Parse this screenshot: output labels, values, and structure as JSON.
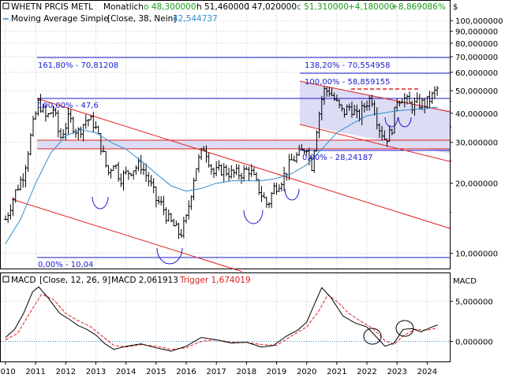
{
  "header": {
    "instrument": "WHETN PRCIS METL",
    "period": "Monatlich",
    "open_label": "o 48,300000",
    "high_label": "h 51,460000",
    "low_label": "l 47,020000",
    "close_label": "c 51,310000",
    "change_label": "+4,180000",
    "change_pct_label": "+8,869086%",
    "ma_label": "Moving Average Simple",
    "ma_params": "[Close, 38, Nein]",
    "ma_value": "42,544737",
    "currency_label": "$"
  },
  "macd_header": {
    "label": "MACD",
    "params": "[Close, 12, 26, 9]",
    "value_label": "MACD 2,061913",
    "trigger_label": "Trigger 1,674019",
    "axis_name": "MACD"
  },
  "colors": {
    "price_bar": "#000000",
    "moving_average": "#2f8fd0",
    "channel": "#e02020",
    "fib_line": "#1a1ad0",
    "zone_fill": "#dcdcf5",
    "macd_line": "#000000",
    "trigger_line": "#e02020",
    "zero_line": "#2f8fd0"
  },
  "fib_labels": {
    "left_1618": "161,80% - 70,81208",
    "left_100": "100,00% - 47,6",
    "left_0": "0,00% - 10,04",
    "right_1382": "138,20% - 70,554958",
    "right_100": "100,00% - 58,859155",
    "right_0": "0,00% - 28,24187"
  },
  "chart_data": {
    "type": "candlestick",
    "scale": "log",
    "x_tick_labels": [
      "2010",
      "2011",
      "2012",
      "2013",
      "2014",
      "2015",
      "2016",
      "2017",
      "2018",
      "2019",
      "2020",
      "2021",
      "2022",
      "2023",
      "2024"
    ],
    "y_tick_labels": [
      "10,000000",
      "20,000000",
      "30,000000",
      "40,000000",
      "50,000000",
      "60,000000",
      "70,000000",
      "80,000000",
      "90,000000",
      "100,000000"
    ],
    "y_ticks": [
      10,
      20,
      30,
      40,
      50,
      60,
      70,
      80,
      90,
      100
    ],
    "ylim": [
      8.6,
      110
    ],
    "xlim": [
      2010.0,
      2024.75
    ],
    "price_series": [
      {
        "t": 2010.0,
        "v": 14
      },
      {
        "t": 2010.3,
        "v": 18
      },
      {
        "t": 2010.6,
        "v": 22
      },
      {
        "t": 2010.9,
        "v": 35
      },
      {
        "t": 2011.1,
        "v": 45
      },
      {
        "t": 2011.35,
        "v": 38
      },
      {
        "t": 2011.6,
        "v": 42
      },
      {
        "t": 2011.8,
        "v": 31
      },
      {
        "t": 2012.1,
        "v": 38
      },
      {
        "t": 2012.4,
        "v": 33
      },
      {
        "t": 2012.7,
        "v": 38
      },
      {
        "t": 2012.95,
        "v": 36
      },
      {
        "t": 2013.2,
        "v": 28
      },
      {
        "t": 2013.4,
        "v": 22
      },
      {
        "t": 2013.6,
        "v": 25
      },
      {
        "t": 2013.8,
        "v": 21
      },
      {
        "t": 2014.0,
        "v": 22
      },
      {
        "t": 2014.2,
        "v": 23
      },
      {
        "t": 2014.5,
        "v": 24
      },
      {
        "t": 2014.8,
        "v": 20
      },
      {
        "t": 2015.0,
        "v": 17
      },
      {
        "t": 2015.2,
        "v": 16
      },
      {
        "t": 2015.4,
        "v": 14
      },
      {
        "t": 2015.6,
        "v": 13
      },
      {
        "t": 2015.8,
        "v": 12
      },
      {
        "t": 2016.0,
        "v": 14
      },
      {
        "t": 2016.3,
        "v": 23
      },
      {
        "t": 2016.6,
        "v": 29
      },
      {
        "t": 2016.9,
        "v": 22
      },
      {
        "t": 2017.2,
        "v": 23
      },
      {
        "t": 2017.5,
        "v": 22
      },
      {
        "t": 2017.8,
        "v": 22
      },
      {
        "t": 2018.1,
        "v": 23
      },
      {
        "t": 2018.4,
        "v": 19
      },
      {
        "t": 2018.7,
        "v": 16
      },
      {
        "t": 2018.9,
        "v": 19
      },
      {
        "t": 2019.2,
        "v": 21
      },
      {
        "t": 2019.5,
        "v": 25
      },
      {
        "t": 2019.8,
        "v": 27
      },
      {
        "t": 2020.0,
        "v": 29
      },
      {
        "t": 2020.15,
        "v": 23
      },
      {
        "t": 2020.35,
        "v": 36
      },
      {
        "t": 2020.55,
        "v": 50
      },
      {
        "t": 2020.75,
        "v": 50
      },
      {
        "t": 2021.0,
        "v": 44
      },
      {
        "t": 2021.2,
        "v": 40
      },
      {
        "t": 2021.45,
        "v": 43
      },
      {
        "t": 2021.7,
        "v": 38
      },
      {
        "t": 2021.95,
        "v": 44
      },
      {
        "t": 2022.15,
        "v": 47
      },
      {
        "t": 2022.4,
        "v": 35
      },
      {
        "t": 2022.6,
        "v": 31
      },
      {
        "t": 2022.8,
        "v": 33
      },
      {
        "t": 2023.0,
        "v": 46
      },
      {
        "t": 2023.2,
        "v": 47
      },
      {
        "t": 2023.45,
        "v": 43
      },
      {
        "t": 2023.7,
        "v": 44
      },
      {
        "t": 2023.95,
        "v": 44
      },
      {
        "t": 2024.15,
        "v": 47
      },
      {
        "t": 2024.35,
        "v": 51.3
      }
    ],
    "moving_average": [
      {
        "t": 2010.0,
        "v": 11
      },
      {
        "t": 2010.5,
        "v": 14
      },
      {
        "t": 2011.0,
        "v": 20
      },
      {
        "t": 2011.5,
        "v": 27
      },
      {
        "t": 2012.0,
        "v": 32
      },
      {
        "t": 2012.5,
        "v": 34
      },
      {
        "t": 2013.0,
        "v": 33
      },
      {
        "t": 2013.5,
        "v": 30
      },
      {
        "t": 2014.0,
        "v": 28
      },
      {
        "t": 2014.5,
        "v": 25
      },
      {
        "t": 2015.0,
        "v": 22
      },
      {
        "t": 2015.5,
        "v": 19.5
      },
      {
        "t": 2016.0,
        "v": 18.5
      },
      {
        "t": 2016.5,
        "v": 19
      },
      {
        "t": 2017.0,
        "v": 20
      },
      {
        "t": 2017.5,
        "v": 20.5
      },
      {
        "t": 2018.0,
        "v": 20.5
      },
      {
        "t": 2018.5,
        "v": 20.5
      },
      {
        "t": 2019.0,
        "v": 21
      },
      {
        "t": 2019.5,
        "v": 22
      },
      {
        "t": 2020.0,
        "v": 24
      },
      {
        "t": 2020.5,
        "v": 28
      },
      {
        "t": 2021.0,
        "v": 33
      },
      {
        "t": 2021.5,
        "v": 36
      },
      {
        "t": 2022.0,
        "v": 39
      },
      {
        "t": 2022.5,
        "v": 40
      },
      {
        "t": 2023.0,
        "v": 41
      },
      {
        "t": 2023.5,
        "v": 41.5
      },
      {
        "t": 2024.0,
        "v": 42
      },
      {
        "t": 2024.35,
        "v": 42.5
      }
    ],
    "fib_levels_left": [
      {
        "label": "161,80%",
        "value": 70.81208
      },
      {
        "label": "100,00%",
        "value": 47.6
      },
      {
        "label": "0,00%",
        "value": 10.04
      }
    ],
    "fib_levels_right": [
      {
        "label": "138,20%",
        "value": 70.554958
      },
      {
        "label": "100,00%",
        "value": 58.859155
      },
      {
        "label": "0,00%",
        "value": 28.24187
      }
    ],
    "macd": {
      "ylim": [
        -2.5,
        8.5
      ],
      "y_ticks": [
        5,
        0
      ],
      "y_tick_labels": [
        "5,000000",
        "0,000000"
      ],
      "macd_series": [
        {
          "t": 2010.0,
          "v": 0.5
        },
        {
          "t": 2010.3,
          "v": 1.5
        },
        {
          "t": 2010.6,
          "v": 3.5
        },
        {
          "t": 2010.9,
          "v": 6.2
        },
        {
          "t": 2011.1,
          "v": 6.8
        },
        {
          "t": 2011.4,
          "v": 5.5
        },
        {
          "t": 2011.8,
          "v": 3.5
        },
        {
          "t": 2012.1,
          "v": 2.8
        },
        {
          "t": 2012.4,
          "v": 2.0
        },
        {
          "t": 2012.7,
          "v": 1.5
        },
        {
          "t": 2013.0,
          "v": 0.8
        },
        {
          "t": 2013.3,
          "v": -0.3
        },
        {
          "t": 2013.6,
          "v": -1.0
        },
        {
          "t": 2014.0,
          "v": -0.6
        },
        {
          "t": 2014.5,
          "v": -0.3
        },
        {
          "t": 2015.0,
          "v": -0.8
        },
        {
          "t": 2015.5,
          "v": -1.2
        },
        {
          "t": 2016.0,
          "v": -0.6
        },
        {
          "t": 2016.5,
          "v": 0.5
        },
        {
          "t": 2017.0,
          "v": 0.2
        },
        {
          "t": 2017.5,
          "v": -0.2
        },
        {
          "t": 2018.0,
          "v": -0.1
        },
        {
          "t": 2018.5,
          "v": -0.7
        },
        {
          "t": 2018.9,
          "v": -0.5
        },
        {
          "t": 2019.3,
          "v": 0.6
        },
        {
          "t": 2019.7,
          "v": 1.4
        },
        {
          "t": 2020.0,
          "v": 2.4
        },
        {
          "t": 2020.3,
          "v": 5.0
        },
        {
          "t": 2020.5,
          "v": 6.7
        },
        {
          "t": 2020.8,
          "v": 5.5
        },
        {
          "t": 2021.2,
          "v": 3.2
        },
        {
          "t": 2021.6,
          "v": 2.3
        },
        {
          "t": 2022.0,
          "v": 1.8
        },
        {
          "t": 2022.3,
          "v": 0.6
        },
        {
          "t": 2022.6,
          "v": -0.6
        },
        {
          "t": 2022.9,
          "v": -0.2
        },
        {
          "t": 2023.2,
          "v": 1.5
        },
        {
          "t": 2023.5,
          "v": 1.6
        },
        {
          "t": 2023.8,
          "v": 1.2
        },
        {
          "t": 2024.1,
          "v": 1.7
        },
        {
          "t": 2024.35,
          "v": 2.06
        }
      ],
      "trigger_series": [
        {
          "t": 2010.0,
          "v": 0.2
        },
        {
          "t": 2010.4,
          "v": 1.0
        },
        {
          "t": 2010.8,
          "v": 3.5
        },
        {
          "t": 2011.2,
          "v": 5.9
        },
        {
          "t": 2011.6,
          "v": 5.2
        },
        {
          "t": 2012.0,
          "v": 3.5
        },
        {
          "t": 2012.4,
          "v": 2.6
        },
        {
          "t": 2012.8,
          "v": 1.9
        },
        {
          "t": 2013.2,
          "v": 0.7
        },
        {
          "t": 2013.6,
          "v": -0.5
        },
        {
          "t": 2014.0,
          "v": -0.7
        },
        {
          "t": 2014.5,
          "v": -0.4
        },
        {
          "t": 2015.0,
          "v": -0.6
        },
        {
          "t": 2015.5,
          "v": -1.0
        },
        {
          "t": 2016.0,
          "v": -0.8
        },
        {
          "t": 2016.5,
          "v": 0.0
        },
        {
          "t": 2017.0,
          "v": 0.2
        },
        {
          "t": 2017.5,
          "v": -0.1
        },
        {
          "t": 2018.0,
          "v": -0.1
        },
        {
          "t": 2018.5,
          "v": -0.4
        },
        {
          "t": 2019.0,
          "v": -0.5
        },
        {
          "t": 2019.5,
          "v": 0.7
        },
        {
          "t": 2020.0,
          "v": 1.8
        },
        {
          "t": 2020.4,
          "v": 3.8
        },
        {
          "t": 2020.7,
          "v": 5.8
        },
        {
          "t": 2021.0,
          "v": 5.0
        },
        {
          "t": 2021.4,
          "v": 3.5
        },
        {
          "t": 2021.8,
          "v": 2.5
        },
        {
          "t": 2022.2,
          "v": 1.6
        },
        {
          "t": 2022.6,
          "v": 0.1
        },
        {
          "t": 2022.9,
          "v": -0.4
        },
        {
          "t": 2023.2,
          "v": 0.7
        },
        {
          "t": 2023.6,
          "v": 1.5
        },
        {
          "t": 2024.0,
          "v": 1.4
        },
        {
          "t": 2024.35,
          "v": 1.67
        }
      ]
    }
  }
}
